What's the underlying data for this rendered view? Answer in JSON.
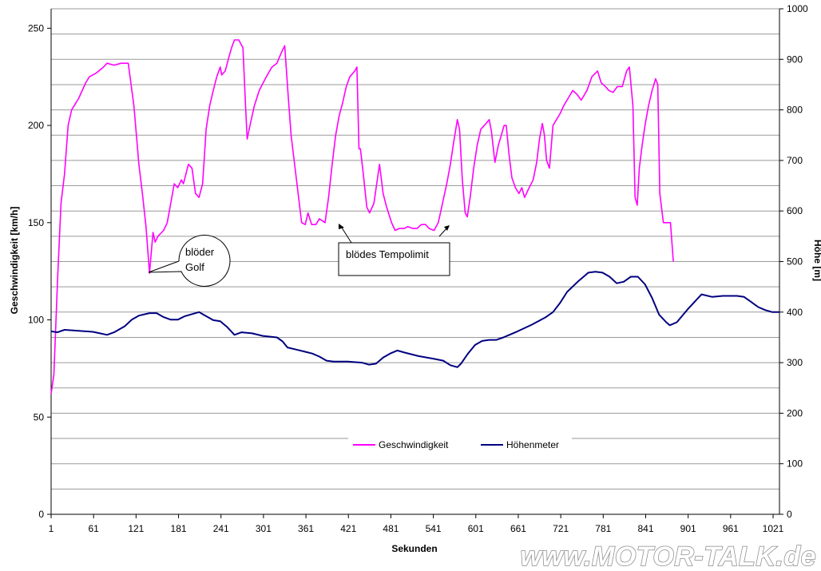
{
  "chart_data": {
    "type": "line",
    "xlabel": "Sekunden",
    "ylabel": "Geschwindigkeit [km/h]",
    "y2label": "Höhe [m]",
    "xlim": [
      1,
      1030
    ],
    "ylim": [
      0,
      260
    ],
    "y2lim": [
      0,
      1000
    ],
    "x_ticks": [
      1,
      61,
      121,
      181,
      241,
      301,
      361,
      421,
      481,
      541,
      601,
      661,
      721,
      781,
      841,
      901,
      961,
      1021
    ],
    "y_ticks": [
      0,
      50,
      100,
      150,
      200,
      250
    ],
    "y2_ticks": [
      0,
      100,
      200,
      300,
      400,
      500,
      600,
      700,
      800,
      900,
      1000
    ],
    "grid": "horizontal",
    "legend": "bottom-center",
    "series": [
      {
        "name": "Geschwindigkeit",
        "axis": "left",
        "color": "#ff00ff",
        "points": [
          [
            1,
            62
          ],
          [
            5,
            72
          ],
          [
            10,
            120
          ],
          [
            15,
            160
          ],
          [
            20,
            175
          ],
          [
            25,
            200
          ],
          [
            30,
            208
          ],
          [
            40,
            214
          ],
          [
            50,
            222
          ],
          [
            55,
            225
          ],
          [
            65,
            227
          ],
          [
            75,
            230
          ],
          [
            80,
            232
          ],
          [
            90,
            231
          ],
          [
            100,
            232
          ],
          [
            110,
            232
          ],
          [
            118,
            210
          ],
          [
            125,
            180
          ],
          [
            130,
            165
          ],
          [
            135,
            148
          ],
          [
            140,
            124
          ],
          [
            145,
            145
          ],
          [
            148,
            140
          ],
          [
            152,
            143
          ],
          [
            160,
            146
          ],
          [
            165,
            150
          ],
          [
            170,
            160
          ],
          [
            175,
            170
          ],
          [
            180,
            168
          ],
          [
            185,
            172
          ],
          [
            188,
            170
          ],
          [
            195,
            180
          ],
          [
            200,
            178
          ],
          [
            205,
            165
          ],
          [
            210,
            163
          ],
          [
            215,
            170
          ],
          [
            220,
            198
          ],
          [
            225,
            210
          ],
          [
            230,
            218
          ],
          [
            235,
            225
          ],
          [
            240,
            230
          ],
          [
            242,
            226
          ],
          [
            247,
            228
          ],
          [
            252,
            235
          ],
          [
            256,
            240
          ],
          [
            260,
            244
          ],
          [
            266,
            244
          ],
          [
            272,
            240
          ],
          [
            276,
            208
          ],
          [
            278,
            193
          ],
          [
            282,
            200
          ],
          [
            288,
            210
          ],
          [
            295,
            218
          ],
          [
            305,
            225
          ],
          [
            313,
            230
          ],
          [
            320,
            232
          ],
          [
            327,
            238
          ],
          [
            331,
            241
          ],
          [
            336,
            215
          ],
          [
            340,
            195
          ],
          [
            345,
            180
          ],
          [
            350,
            165
          ],
          [
            355,
            150
          ],
          [
            360,
            149
          ],
          [
            364,
            155
          ],
          [
            369,
            149
          ],
          [
            375,
            149
          ],
          [
            380,
            152
          ],
          [
            388,
            150
          ],
          [
            393,
            163
          ],
          [
            398,
            180
          ],
          [
            403,
            195
          ],
          [
            408,
            205
          ],
          [
            413,
            212
          ],
          [
            418,
            220
          ],
          [
            423,
            225
          ],
          [
            430,
            228
          ],
          [
            433,
            230
          ],
          [
            436,
            188
          ],
          [
            438,
            188
          ],
          [
            442,
            175
          ],
          [
            447,
            158
          ],
          [
            451,
            155
          ],
          [
            457,
            160
          ],
          [
            461,
            170
          ],
          [
            465,
            180
          ],
          [
            470,
            165
          ],
          [
            475,
            158
          ],
          [
            482,
            150
          ],
          [
            487,
            146
          ],
          [
            493,
            147
          ],
          [
            500,
            147
          ],
          [
            505,
            148
          ],
          [
            512,
            147
          ],
          [
            518,
            147
          ],
          [
            524,
            149
          ],
          [
            530,
            149
          ],
          [
            535,
            147
          ],
          [
            542,
            146
          ],
          [
            548,
            150
          ],
          [
            554,
            160
          ],
          [
            560,
            170
          ],
          [
            565,
            180
          ],
          [
            570,
            192
          ],
          [
            575,
            203
          ],
          [
            578,
            198
          ],
          [
            582,
            172
          ],
          [
            586,
            155
          ],
          [
            589,
            153
          ],
          [
            593,
            163
          ],
          [
            598,
            178
          ],
          [
            603,
            190
          ],
          [
            608,
            198
          ],
          [
            613,
            200
          ],
          [
            620,
            203
          ],
          [
            623,
            197
          ],
          [
            628,
            181
          ],
          [
            633,
            190
          ],
          [
            637,
            195
          ],
          [
            641,
            200
          ],
          [
            644,
            200
          ],
          [
            648,
            185
          ],
          [
            652,
            173
          ],
          [
            657,
            168
          ],
          [
            662,
            165
          ],
          [
            666,
            168
          ],
          [
            670,
            163
          ],
          [
            675,
            167
          ],
          [
            682,
            172
          ],
          [
            687,
            181
          ],
          [
            691,
            193
          ],
          [
            695,
            201
          ],
          [
            698,
            195
          ],
          [
            701,
            182
          ],
          [
            705,
            178
          ],
          [
            710,
            200
          ],
          [
            715,
            203
          ],
          [
            720,
            206
          ],
          [
            725,
            210
          ],
          [
            733,
            215
          ],
          [
            738,
            218
          ],
          [
            744,
            216
          ],
          [
            750,
            213
          ],
          [
            758,
            218
          ],
          [
            765,
            225
          ],
          [
            773,
            228
          ],
          [
            778,
            222
          ],
          [
            784,
            220
          ],
          [
            789,
            218
          ],
          [
            795,
            217
          ],
          [
            801,
            220
          ],
          [
            808,
            220
          ],
          [
            814,
            228
          ],
          [
            818,
            230
          ],
          [
            823,
            210
          ],
          [
            826,
            163
          ],
          [
            829,
            159
          ],
          [
            832,
            178
          ],
          [
            836,
            190
          ],
          [
            840,
            200
          ],
          [
            845,
            210
          ],
          [
            850,
            218
          ],
          [
            855,
            224
          ],
          [
            858,
            221
          ],
          [
            861,
            165
          ],
          [
            866,
            150
          ],
          [
            872,
            150
          ],
          [
            876,
            150
          ],
          [
            880,
            130
          ]
        ]
      },
      {
        "name": "Höhenmeter",
        "axis": "right",
        "color": "#000080",
        "points": [
          [
            1,
            362
          ],
          [
            10,
            360
          ],
          [
            20,
            365
          ],
          [
            40,
            363
          ],
          [
            60,
            361
          ],
          [
            70,
            358
          ],
          [
            80,
            355
          ],
          [
            90,
            360
          ],
          [
            105,
            372
          ],
          [
            115,
            385
          ],
          [
            125,
            393
          ],
          [
            140,
            398
          ],
          [
            150,
            398
          ],
          [
            160,
            390
          ],
          [
            170,
            385
          ],
          [
            180,
            385
          ],
          [
            190,
            392
          ],
          [
            210,
            400
          ],
          [
            220,
            392
          ],
          [
            230,
            384
          ],
          [
            240,
            382
          ],
          [
            250,
            370
          ],
          [
            260,
            355
          ],
          [
            270,
            360
          ],
          [
            285,
            358
          ],
          [
            300,
            353
          ],
          [
            320,
            350
          ],
          [
            328,
            342
          ],
          [
            335,
            330
          ],
          [
            350,
            325
          ],
          [
            370,
            318
          ],
          [
            380,
            312
          ],
          [
            390,
            304
          ],
          [
            400,
            302
          ],
          [
            420,
            302
          ],
          [
            440,
            300
          ],
          [
            450,
            296
          ],
          [
            460,
            298
          ],
          [
            470,
            310
          ],
          [
            480,
            318
          ],
          [
            490,
            324
          ],
          [
            500,
            320
          ],
          [
            520,
            313
          ],
          [
            540,
            308
          ],
          [
            555,
            304
          ],
          [
            565,
            295
          ],
          [
            575,
            291
          ],
          [
            580,
            298
          ],
          [
            590,
            318
          ],
          [
            600,
            335
          ],
          [
            610,
            343
          ],
          [
            620,
            345
          ],
          [
            630,
            345
          ],
          [
            640,
            350
          ],
          [
            660,
            362
          ],
          [
            680,
            375
          ],
          [
            700,
            390
          ],
          [
            710,
            400
          ],
          [
            720,
            418
          ],
          [
            730,
            440
          ],
          [
            745,
            460
          ],
          [
            760,
            478
          ],
          [
            770,
            480
          ],
          [
            780,
            478
          ],
          [
            790,
            470
          ],
          [
            800,
            457
          ],
          [
            810,
            460
          ],
          [
            820,
            470
          ],
          [
            830,
            470
          ],
          [
            840,
            455
          ],
          [
            850,
            428
          ],
          [
            860,
            395
          ],
          [
            870,
            380
          ],
          [
            875,
            374
          ],
          [
            885,
            380
          ],
          [
            900,
            405
          ],
          [
            910,
            420
          ],
          [
            920,
            435
          ],
          [
            935,
            430
          ],
          [
            950,
            432
          ],
          [
            970,
            432
          ],
          [
            980,
            430
          ],
          [
            990,
            420
          ],
          [
            1000,
            410
          ],
          [
            1010,
            404
          ],
          [
            1020,
            400
          ],
          [
            1030,
            400
          ]
        ]
      }
    ],
    "annotations": [
      {
        "lines": [
          "blöder",
          "Golf"
        ]
      },
      {
        "lines": [
          "blödes Tempolimit"
        ]
      }
    ]
  },
  "watermark": "www.MOTOR-TALK.de"
}
